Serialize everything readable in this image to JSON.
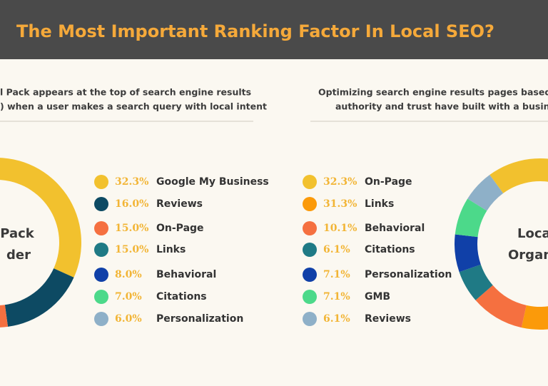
{
  "header": {
    "title": "The Most Important Ranking Factor In Local SEO?"
  },
  "chart_data": [
    {
      "type": "pie",
      "subtitle": [
        "l Pack appears at the top of search engine results",
        ") when a user makes a search query with local intent"
      ],
      "center_label": [
        "Pack",
        "der"
      ],
      "categories": [
        "Google My Business",
        "Reviews",
        "On-Page",
        "Links",
        "Behavioral",
        "Citations",
        "Personalization"
      ],
      "values": [
        32.3,
        16.0,
        15.0,
        15.0,
        8.0,
        7.0,
        6.0
      ],
      "value_labels": [
        "32.3%",
        "16.0%",
        "15.0%",
        "15.0%",
        "8.0%",
        "7.0%",
        "6.0%"
      ],
      "colors": [
        "#f2c12e",
        "#0d4a63",
        "#f57040",
        "#1f7a85",
        "#1040a8",
        "#4cd98a",
        "#8eb0c8"
      ]
    },
    {
      "type": "pie",
      "subtitle": [
        "Optimizing search engine results pages based on the",
        "authority and trust have built with a business’s w"
      ],
      "center_label": [
        "Loca",
        "Organ"
      ],
      "categories": [
        "On-Page",
        "Links",
        "Behavioral",
        "Citations",
        "Personalization",
        "GMB",
        "Reviews"
      ],
      "values": [
        32.3,
        31.3,
        10.1,
        6.1,
        7.1,
        7.1,
        6.1
      ],
      "value_labels": [
        "32.3%",
        "31.3%",
        "10.1%",
        "6.1%",
        "7.1%",
        "7.1%",
        "6.1%"
      ],
      "colors": [
        "#f2c12e",
        "#fb9a0a",
        "#f57040",
        "#1f7a85",
        "#1040a8",
        "#4cd98a",
        "#8eb0c8"
      ]
    }
  ]
}
